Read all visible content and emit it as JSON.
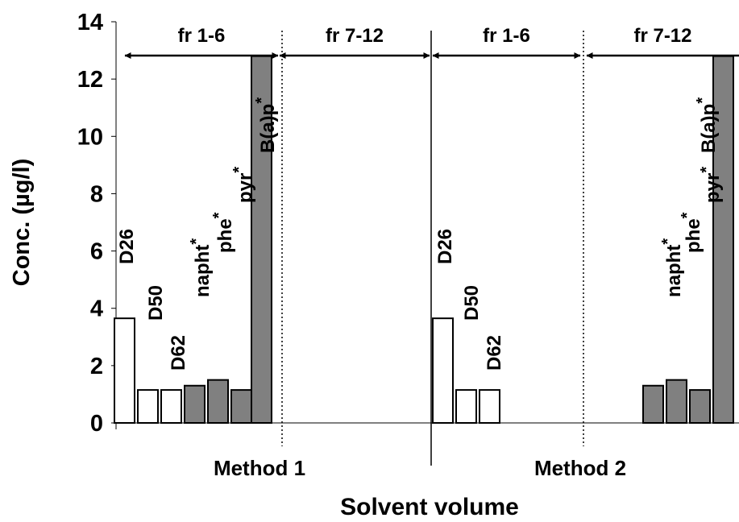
{
  "chart_data": {
    "type": "bar",
    "ylabel": "Conc. (µg/l)",
    "xlabel": "Solvent volume",
    "ylim": [
      0,
      14
    ],
    "yticks": [
      "0",
      "2",
      "4",
      "6",
      "8",
      "10",
      "12",
      "14"
    ],
    "groups": [
      "Method 1",
      "Method 2"
    ],
    "fraction_ranges": [
      "fr 1-6",
      "fr 7-12",
      "fr 1-6",
      "fr 7-12"
    ],
    "series": [
      {
        "name": "Method 1",
        "bars": [
          {
            "label": "D26",
            "value": 3.65,
            "fill": "#ffffff",
            "fraction": "fr 1-6"
          },
          {
            "label": "D50",
            "value": 1.15,
            "fill": "#ffffff",
            "fraction": "fr 1-6"
          },
          {
            "label": "D62",
            "value": 1.15,
            "fill": "#ffffff",
            "fraction": "fr 1-6"
          },
          {
            "label": "napht*",
            "value": 1.3,
            "fill": "#808080",
            "fraction": "fr 1-6"
          },
          {
            "label": "phe*",
            "value": 1.5,
            "fill": "#808080",
            "fraction": "fr 1-6"
          },
          {
            "label": "pyr*",
            "value": 1.15,
            "fill": "#808080",
            "fraction": "fr 1-6"
          },
          {
            "label": "B(a)p*",
            "value": 12.8,
            "fill": "#808080",
            "fraction": "fr 1-6"
          }
        ]
      },
      {
        "name": "Method 2",
        "bars": [
          {
            "label": "D26",
            "value": 3.65,
            "fill": "#ffffff",
            "fraction": "fr 1-6"
          },
          {
            "label": "D50",
            "value": 1.15,
            "fill": "#ffffff",
            "fraction": "fr 1-6"
          },
          {
            "label": "D62",
            "value": 1.15,
            "fill": "#ffffff",
            "fraction": "fr 1-6"
          },
          {
            "label": "napht*",
            "value": 1.3,
            "fill": "#808080",
            "fraction": "fr 7-12"
          },
          {
            "label": "phe*",
            "value": 1.5,
            "fill": "#808080",
            "fraction": "fr 7-12"
          },
          {
            "label": "pyr*",
            "value": 1.15,
            "fill": "#808080",
            "fraction": "fr 7-12"
          },
          {
            "label": "B(a)p*",
            "value": 12.8,
            "fill": "#808080",
            "fraction": "fr 7-12"
          }
        ]
      }
    ]
  }
}
